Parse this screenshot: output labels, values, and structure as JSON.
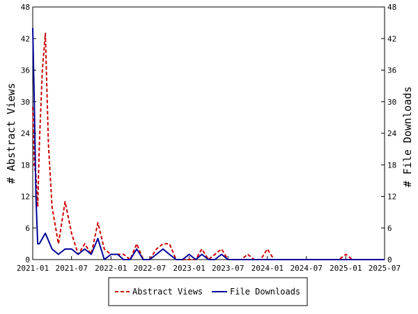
{
  "chart_data": {
    "type": "line",
    "title": "",
    "ylabel_left": "# Abstract Views",
    "ylabel_right": "# File Downloads",
    "ylim": [
      0,
      48
    ],
    "yticks": [
      0,
      6,
      12,
      18,
      24,
      30,
      36,
      42,
      48
    ],
    "xlim": [
      "2021-01-01",
      "2025-07-01"
    ],
    "xticks": [
      "2021-01",
      "2021-07",
      "2022-01",
      "2022-07",
      "2023-01",
      "2023-07",
      "2024-01",
      "2024-07",
      "2025-01",
      "2025-07"
    ],
    "legend_position": "bottom",
    "series": [
      {
        "name": "Abstract Views",
        "axis": "left",
        "color": "#cc0000",
        "style": "dashed",
        "points": [
          [
            "2021-01-01",
            29
          ],
          [
            "2021-01-08",
            18
          ],
          [
            "2021-01-16",
            16
          ],
          [
            "2021-01-24",
            10
          ],
          [
            "2021-02-01",
            22
          ],
          [
            "2021-02-15",
            36
          ],
          [
            "2021-03-01",
            43
          ],
          [
            "2021-03-15",
            22
          ],
          [
            "2021-04-01",
            10
          ],
          [
            "2021-05-01",
            3
          ],
          [
            "2021-06-01",
            11
          ],
          [
            "2021-07-01",
            5
          ],
          [
            "2021-08-01",
            1
          ],
          [
            "2021-09-01",
            3
          ],
          [
            "2021-10-01",
            1
          ],
          [
            "2021-11-01",
            7
          ],
          [
            "2021-12-01",
            2
          ],
          [
            "2022-01-01",
            1
          ],
          [
            "2022-02-01",
            1
          ],
          [
            "2022-03-01",
            1
          ],
          [
            "2022-04-01",
            0
          ],
          [
            "2022-05-01",
            3
          ],
          [
            "2022-06-01",
            0
          ],
          [
            "2022-07-01",
            0
          ],
          [
            "2022-08-01",
            2
          ],
          [
            "2022-09-01",
            3
          ],
          [
            "2022-10-01",
            3
          ],
          [
            "2022-11-01",
            0
          ],
          [
            "2022-12-01",
            0
          ],
          [
            "2023-01-01",
            0
          ],
          [
            "2023-02-01",
            0
          ],
          [
            "2023-03-01",
            2
          ],
          [
            "2023-04-01",
            0
          ],
          [
            "2023-05-01",
            1
          ],
          [
            "2023-06-01",
            2
          ],
          [
            "2023-07-01",
            0
          ],
          [
            "2023-08-01",
            0
          ],
          [
            "2023-09-01",
            0
          ],
          [
            "2023-10-01",
            1
          ],
          [
            "2023-11-01",
            0
          ],
          [
            "2023-12-01",
            0
          ],
          [
            "2024-01-01",
            2
          ],
          [
            "2024-02-01",
            0
          ],
          [
            "2024-03-01",
            0
          ],
          [
            "2024-04-01",
            0
          ],
          [
            "2024-05-01",
            0
          ],
          [
            "2024-06-01",
            0
          ],
          [
            "2024-07-01",
            0
          ],
          [
            "2024-08-01",
            0
          ],
          [
            "2024-09-01",
            0
          ],
          [
            "2024-10-01",
            0
          ],
          [
            "2024-11-01",
            0
          ],
          [
            "2024-12-01",
            0
          ],
          [
            "2025-01-01",
            1
          ],
          [
            "2025-02-01",
            0
          ],
          [
            "2025-03-01",
            0
          ],
          [
            "2025-04-01",
            0
          ],
          [
            "2025-05-01",
            0
          ],
          [
            "2025-06-01",
            0
          ],
          [
            "2025-07-01",
            0
          ]
        ]
      },
      {
        "name": "File Downloads",
        "axis": "right",
        "color": "#000099",
        "style": "solid",
        "points": [
          [
            "2021-01-01",
            44
          ],
          [
            "2021-01-08",
            30
          ],
          [
            "2021-01-16",
            12
          ],
          [
            "2021-01-24",
            3
          ],
          [
            "2021-02-01",
            3
          ],
          [
            "2021-03-01",
            5
          ],
          [
            "2021-04-01",
            2
          ],
          [
            "2021-05-01",
            1
          ],
          [
            "2021-06-01",
            2
          ],
          [
            "2021-07-01",
            2
          ],
          [
            "2021-08-01",
            1
          ],
          [
            "2021-09-01",
            2
          ],
          [
            "2021-10-01",
            1
          ],
          [
            "2021-11-01",
            4
          ],
          [
            "2021-12-01",
            0
          ],
          [
            "2022-01-01",
            1
          ],
          [
            "2022-02-01",
            1
          ],
          [
            "2022-03-01",
            0
          ],
          [
            "2022-04-01",
            0
          ],
          [
            "2022-05-01",
            2
          ],
          [
            "2022-06-01",
            0
          ],
          [
            "2022-07-01",
            0
          ],
          [
            "2022-08-01",
            1
          ],
          [
            "2022-09-01",
            2
          ],
          [
            "2022-10-01",
            1
          ],
          [
            "2022-11-01",
            0
          ],
          [
            "2022-12-01",
            0
          ],
          [
            "2023-01-01",
            1
          ],
          [
            "2023-02-01",
            0
          ],
          [
            "2023-03-01",
            1
          ],
          [
            "2023-04-01",
            0
          ],
          [
            "2023-05-01",
            0
          ],
          [
            "2023-06-01",
            1
          ],
          [
            "2023-07-01",
            0
          ],
          [
            "2023-08-01",
            0
          ],
          [
            "2023-09-01",
            0
          ],
          [
            "2023-10-01",
            0
          ],
          [
            "2023-11-01",
            0
          ],
          [
            "2023-12-01",
            0
          ],
          [
            "2024-01-01",
            0
          ],
          [
            "2024-02-01",
            0
          ],
          [
            "2024-03-01",
            0
          ],
          [
            "2024-04-01",
            0
          ],
          [
            "2024-05-01",
            0
          ],
          [
            "2024-06-01",
            0
          ],
          [
            "2024-07-01",
            0
          ],
          [
            "2024-08-01",
            0
          ],
          [
            "2024-09-01",
            0
          ],
          [
            "2024-10-01",
            0
          ],
          [
            "2024-11-01",
            0
          ],
          [
            "2024-12-01",
            0
          ],
          [
            "2025-01-01",
            0
          ],
          [
            "2025-02-01",
            0
          ],
          [
            "2025-03-01",
            0
          ],
          [
            "2025-04-01",
            0
          ],
          [
            "2025-05-01",
            0
          ],
          [
            "2025-06-01",
            0
          ],
          [
            "2025-07-01",
            0
          ]
        ]
      }
    ]
  }
}
